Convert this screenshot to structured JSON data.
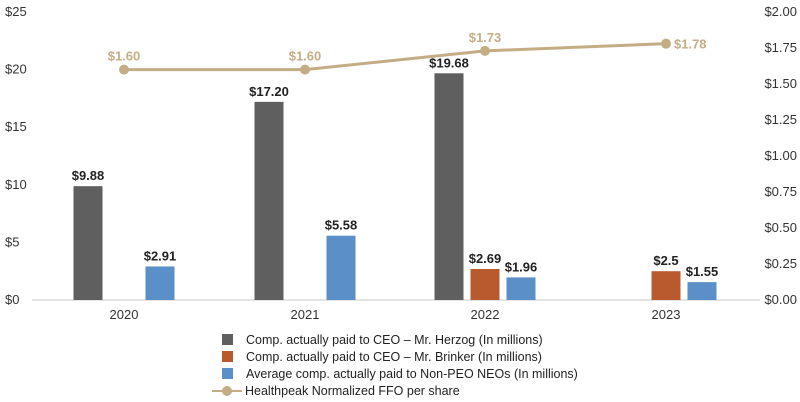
{
  "chart_data": {
    "type": "bar",
    "categories": [
      "2020",
      "2021",
      "2022",
      "2023"
    ],
    "series": [
      {
        "name": "Comp. actually paid to CEO – Mr. Herzog (In millions)",
        "axis": "left",
        "color": "#5f5f5f",
        "values": [
          9.88,
          17.2,
          19.68,
          null
        ],
        "labels": [
          "$9.88",
          "$17.20",
          "$19.68",
          ""
        ]
      },
      {
        "name": "Comp. actually paid to CEO – Mr. Brinker (In millions)",
        "axis": "left",
        "color": "#b85a2e",
        "values": [
          null,
          null,
          2.69,
          2.5
        ],
        "labels": [
          "",
          "",
          "$2.69",
          "$2.5"
        ]
      },
      {
        "name": "Average comp. actually paid to Non-PEO NEOs (In millions)",
        "axis": "left",
        "color": "#5b8fc7",
        "values": [
          2.91,
          5.58,
          1.96,
          1.55
        ],
        "labels": [
          "$2.91",
          "$5.58",
          "$1.96",
          "$1.55"
        ]
      },
      {
        "name": "Healthpeak Normalized FFO per share",
        "axis": "right",
        "type": "line",
        "color": "#c4ad85",
        "values": [
          1.6,
          1.6,
          1.73,
          1.78
        ],
        "labels": [
          "$1.60",
          "$1.60",
          "$1.73",
          "$1.78"
        ]
      }
    ],
    "y_left": {
      "range": [
        0,
        25
      ],
      "ticks": [
        "$0",
        "$5",
        "$10",
        "$15",
        "$20",
        "$25"
      ]
    },
    "y_right": {
      "range": [
        0,
        2.0
      ],
      "ticks": [
        "$0.00",
        "$0.25",
        "$0.50",
        "$0.75",
        "$1.00",
        "$1.25",
        "$1.50",
        "$1.75",
        "$2.00"
      ]
    },
    "legend_position": "bottom",
    "grid": false
  }
}
